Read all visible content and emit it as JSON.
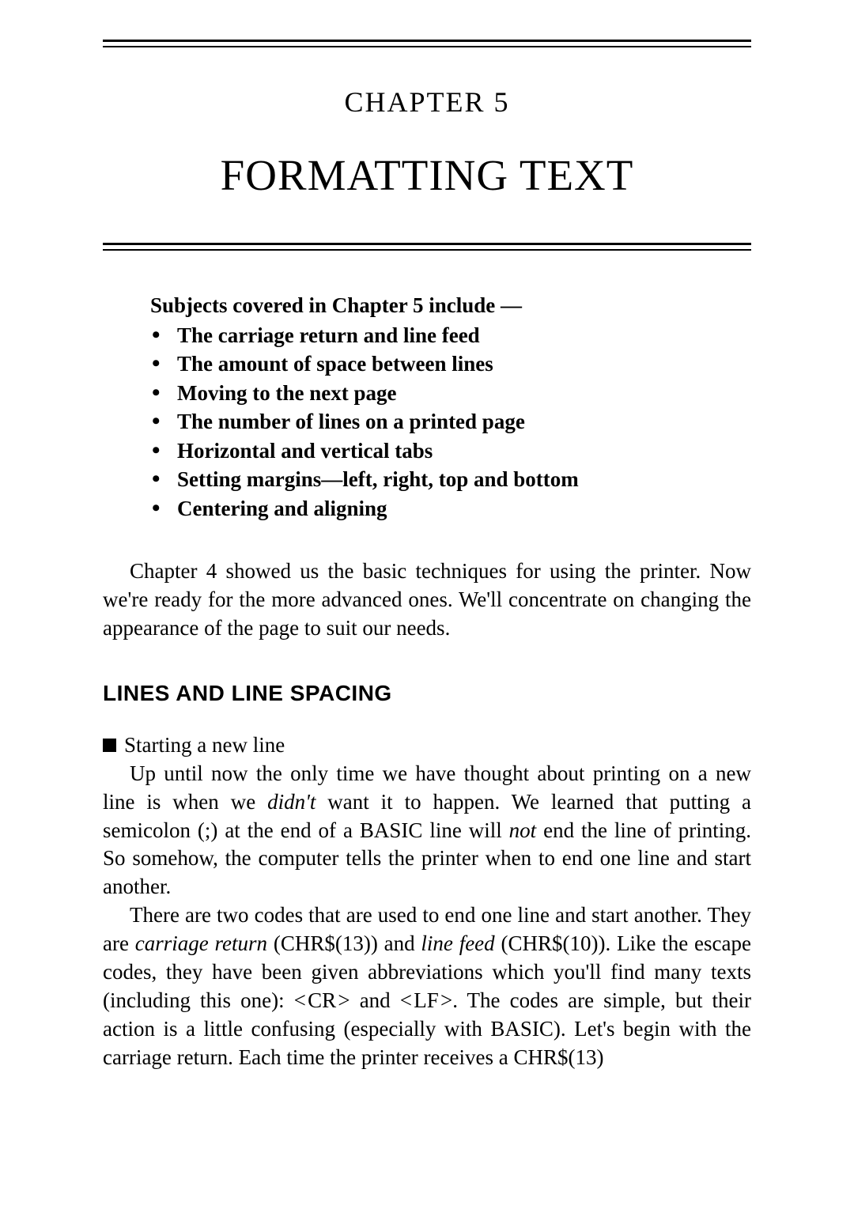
{
  "chapter": {
    "label": "CHAPTER 5",
    "title": "FORMATTING TEXT"
  },
  "subjects": {
    "heading": "Subjects covered in Chapter 5 include —",
    "items": [
      "The carriage return and line feed",
      "The amount of space between lines",
      "Moving to the next page",
      "The number of lines on a printed page",
      "Horizontal and vertical tabs",
      "Setting margins—left, right, top and bottom",
      "Centering and aligning"
    ]
  },
  "intro": "Chapter 4 showed us the basic techniques for using the printer. Now we're ready for the more advanced ones. We'll concentrate on changing the appearance of the page to suit our needs.",
  "section": {
    "heading": "LINES AND LINE SPACING",
    "sub_label": "Starting a new line",
    "para1": {
      "t1": "Up until now the only time we have thought about printing on a new line is when we ",
      "i1": "didn't",
      "t2": " want it to happen. We learned that putting a semicolon (;) at the end of a BASIC line will ",
      "i2": "not",
      "t3": " end the line of printing. So somehow, the computer tells the printer when to end one line and start another."
    },
    "para2": {
      "t1": "There are two codes that are used to end one line and start another. They are ",
      "i1": "carriage return",
      "t2": " (CHR$(13)) and ",
      "i2": "line feed",
      "t3": " (CHR$(10)). Like the escape codes, they have been given abbreviations which you'll find many texts (including this one): < CR > and < LF >. The codes are simple, but their action is a little confusing (especially with BASIC). Let's begin with the carriage return. Each time the printer receives a CHR$(13)"
    }
  }
}
